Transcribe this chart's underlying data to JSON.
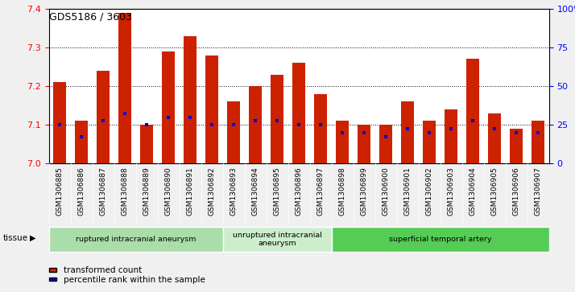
{
  "title": "GDS5186 / 3603",
  "samples": [
    "GSM1306885",
    "GSM1306886",
    "GSM1306887",
    "GSM1306888",
    "GSM1306889",
    "GSM1306890",
    "GSM1306891",
    "GSM1306892",
    "GSM1306893",
    "GSM1306894",
    "GSM1306895",
    "GSM1306896",
    "GSM1306897",
    "GSM1306898",
    "GSM1306899",
    "GSM1306900",
    "GSM1306901",
    "GSM1306902",
    "GSM1306903",
    "GSM1306904",
    "GSM1306905",
    "GSM1306906",
    "GSM1306907"
  ],
  "bar_values": [
    7.21,
    7.11,
    7.24,
    7.39,
    7.1,
    7.29,
    7.33,
    7.28,
    7.16,
    7.2,
    7.23,
    7.26,
    7.18,
    7.11,
    7.1,
    7.1,
    7.16,
    7.11,
    7.14,
    7.27,
    7.13,
    7.09,
    7.11
  ],
  "blue_dot_values": [
    7.1,
    7.07,
    7.11,
    7.13,
    7.1,
    7.12,
    7.12,
    7.1,
    7.1,
    7.11,
    7.11,
    7.1,
    7.1,
    7.08,
    7.08,
    7.07,
    7.09,
    7.08,
    7.09,
    7.11,
    7.09,
    7.08,
    7.08
  ],
  "ymin": 7.0,
  "ymax": 7.4,
  "yticks": [
    7.0,
    7.1,
    7.2,
    7.3,
    7.4
  ],
  "right_ytick_labels": [
    "0",
    "25",
    "50",
    "75",
    "100%"
  ],
  "right_ytick_pcts": [
    0,
    25,
    50,
    75,
    100
  ],
  "bar_color": "#cc2200",
  "dot_color": "#0000cc",
  "groups": [
    {
      "label": "ruptured intracranial aneurysm",
      "start": 0,
      "end": 8,
      "color": "#aaddaa"
    },
    {
      "label": "unruptured intracranial\naneurysm",
      "start": 8,
      "end": 13,
      "color": "#cceecc"
    },
    {
      "label": "superficial temporal artery",
      "start": 13,
      "end": 23,
      "color": "#55cc55"
    }
  ],
  "legend_red_label": "transformed count",
  "legend_blue_label": "percentile rank within the sample",
  "tissue_label": "tissue"
}
